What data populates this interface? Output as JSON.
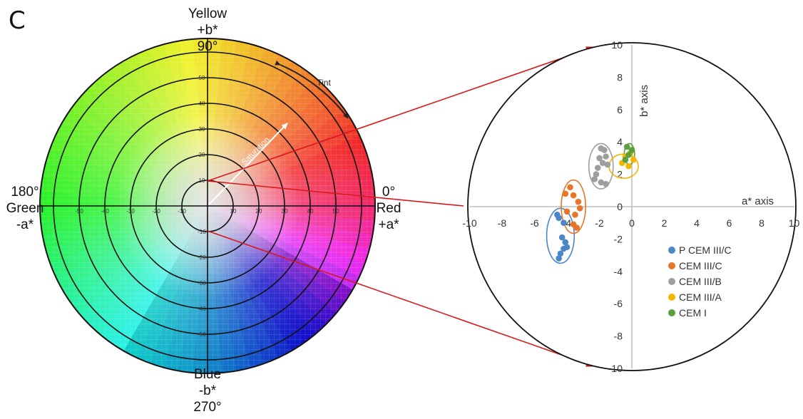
{
  "panel_label": "C",
  "wheel": {
    "top_labels": [
      "Yellow",
      "+b*",
      "90°"
    ],
    "left_labels": [
      "180°",
      "Green",
      "-a*"
    ],
    "right_labels": [
      "0°",
      "Red",
      "+a*"
    ],
    "bottom_labels": [
      "Blue",
      "-b*",
      "270°"
    ],
    "tint_label": "Tint",
    "saturation_label": "Saturation",
    "h_ticks": [
      "-50",
      "-40",
      "-30",
      "-20",
      "-10",
      "10",
      "20",
      "30",
      "40",
      "50"
    ],
    "v_ticks": [
      "50",
      "40",
      "30",
      "20",
      "10",
      "-10",
      "-20",
      "-30",
      "-40",
      "-50"
    ]
  },
  "colors": {
    "arrow": "#d9181e",
    "axis": "#bfbfbf",
    "wheel_grid": "#111111"
  },
  "chart_data": {
    "type": "scatter",
    "title": "",
    "xlabel": "a* axis",
    "ylabel": "b* axis",
    "xlim": [
      -10,
      10
    ],
    "ylim": [
      -10,
      10
    ],
    "x_ticks": [
      "-10",
      "-8",
      "-6",
      "-4",
      "-2",
      "0",
      "2",
      "4",
      "6",
      "8",
      "10"
    ],
    "y_ticks": [
      "10",
      "8",
      "6",
      "4",
      "2",
      "0",
      "-2",
      "-4",
      "-6",
      "-8",
      "-10"
    ],
    "grid": false,
    "legend_position": "bottom-right",
    "series": [
      {
        "name": "P CEM III/C",
        "color": "#4a86c8",
        "x": [
          -4.6,
          -4.5,
          -4.2,
          -4.3,
          -4.1,
          -4.0,
          -4.2,
          -4.4,
          -4.5
        ],
        "y": [
          -0.5,
          -0.7,
          -1.0,
          -1.9,
          -2.2,
          -2.5,
          -2.6,
          -2.9,
          -3.2
        ],
        "ellipse": {
          "cx": -4.4,
          "cy": -1.8,
          "rx": 0.85,
          "ry": 1.7
        }
      },
      {
        "name": "CEM III/C",
        "color": "#e87528",
        "x": [
          -4.1,
          -3.8,
          -3.6,
          -3.3,
          -4.0,
          -3.2,
          -3.5,
          -3.6,
          -3.4
        ],
        "y": [
          0.8,
          1.2,
          0.7,
          0.3,
          -0.3,
          -0.1,
          -0.5,
          -1.1,
          -1.3
        ],
        "ellipse": {
          "cx": -3.6,
          "cy": 0.0,
          "rx": 0.75,
          "ry": 1.65
        }
      },
      {
        "name": "CEM III/B",
        "color": "#9e9e9e",
        "x": [
          -1.9,
          -1.7,
          -1.6,
          -2.0,
          -1.8,
          -1.5,
          -2.1,
          -2.2,
          -2.3,
          -1.9,
          -1.6
        ],
        "y": [
          3.6,
          3.5,
          3.1,
          3.0,
          2.7,
          2.6,
          2.4,
          2.0,
          1.7,
          1.5,
          1.4
        ],
        "ellipse": {
          "cx": -1.9,
          "cy": 2.5,
          "rx": 0.75,
          "ry": 1.4
        }
      },
      {
        "name": "CEM III/A",
        "color": "#f2b600",
        "x": [
          -0.4,
          -0.1,
          0.1,
          -0.6,
          -0.2
        ],
        "y": [
          3.1,
          3.3,
          2.9,
          2.7,
          2.5
        ],
        "ellipse": {
          "cx": -0.5,
          "cy": 2.5,
          "rx": 0.9,
          "ry": 0.75
        }
      },
      {
        "name": "CEM I",
        "color": "#5aa03c",
        "x": [
          -0.3,
          0.0,
          -0.2,
          -0.4
        ],
        "y": [
          3.7,
          3.5,
          3.2,
          2.9
        ],
        "ellipse": {
          "cx": -0.15,
          "cy": 3.25,
          "rx": 0.32,
          "ry": 0.65
        }
      }
    ]
  }
}
